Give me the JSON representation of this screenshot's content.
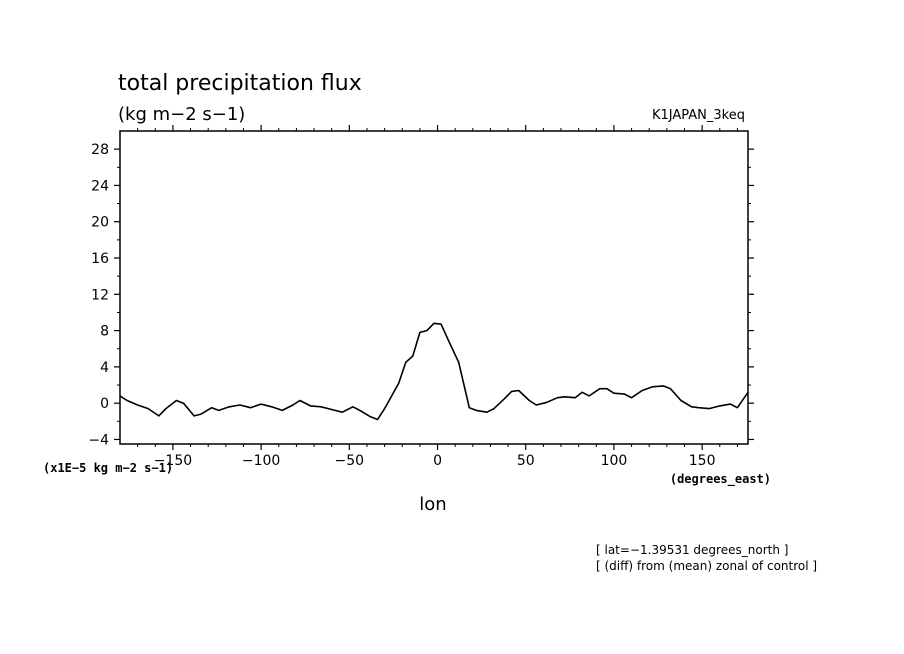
{
  "chart_data": {
    "type": "line",
    "title": "total precipitation flux",
    "units": "(kg m−2 s−1)",
    "run_name": "K1JAPAN_3keq",
    "scale_label": "(x1E−5 kg m−2 s−1)",
    "xlabel": "lon",
    "xunits": "(degrees_east)",
    "info_lines": [
      "[ lat=−1.39531 degrees_north ]",
      "[ (diff) from (mean) zonal of control ]"
    ],
    "xlim": [
      -180,
      176
    ],
    "ylim": [
      -4.5,
      30
    ],
    "x_ticks": [
      -150,
      -100,
      -50,
      0,
      50,
      100,
      150
    ],
    "x_tick_labels": [
      "−150",
      "−100",
      "−50",
      "0",
      "50",
      "100",
      "150"
    ],
    "y_ticks": [
      -4,
      0,
      4,
      8,
      12,
      16,
      20,
      24,
      28
    ],
    "y_tick_labels": [
      "−4",
      "0",
      "4",
      "8",
      "12",
      "16",
      "20",
      "24",
      "28"
    ],
    "grid": false,
    "series": [
      {
        "x": [
          -180,
          -176,
          -170,
          -164,
          -158,
          -154,
          -148,
          -144,
          -138,
          -134,
          -128,
          -124,
          -118,
          -112,
          -106,
          -100,
          -94,
          -88,
          -82,
          -78,
          -72,
          -66,
          -60,
          -54,
          -48,
          -44,
          -38,
          -34,
          -30,
          -26,
          -22,
          -18,
          -14,
          -10,
          -6,
          -2,
          2,
          6,
          12,
          18,
          22,
          28,
          32,
          38,
          42,
          46,
          52,
          56,
          62,
          68,
          72,
          78,
          82,
          86,
          92,
          96,
          100,
          106,
          110,
          116,
          122,
          128,
          132,
          138,
          144,
          148,
          154,
          160,
          166,
          170,
          176
        ],
        "y": [
          0.8,
          0.3,
          -0.2,
          -0.6,
          -1.4,
          -0.6,
          0.3,
          0.0,
          -1.4,
          -1.2,
          -0.5,
          -0.8,
          -0.4,
          -0.2,
          -0.5,
          -0.1,
          -0.4,
          -0.8,
          -0.2,
          0.3,
          -0.3,
          -0.4,
          -0.7,
          -1.0,
          -0.4,
          -0.8,
          -1.5,
          -1.8,
          -0.6,
          0.8,
          2.2,
          4.5,
          5.2,
          7.8,
          8.0,
          8.8,
          8.7,
          7.0,
          4.5,
          -0.5,
          -0.8,
          -1.0,
          -0.6,
          0.5,
          1.3,
          1.4,
          0.3,
          -0.2,
          0.1,
          0.6,
          0.7,
          0.6,
          1.2,
          0.8,
          1.6,
          1.6,
          1.1,
          1.0,
          0.6,
          1.4,
          1.8,
          1.9,
          1.6,
          0.3,
          -0.4,
          -0.5,
          -0.6,
          -0.3,
          -0.1,
          -0.5,
          1.2
        ]
      }
    ]
  }
}
